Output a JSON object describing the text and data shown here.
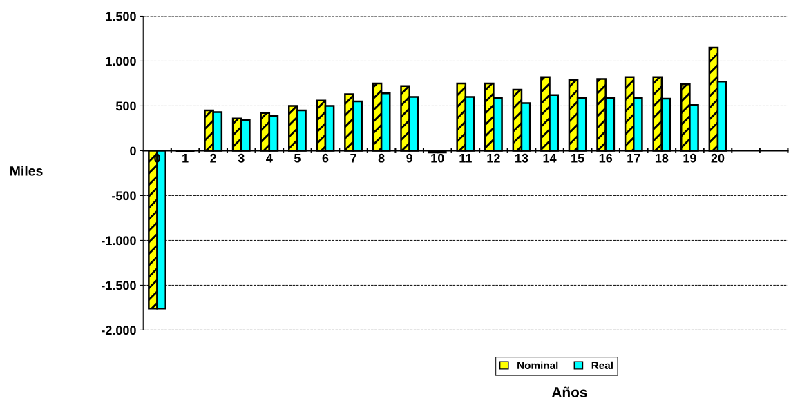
{
  "chart_data": {
    "type": "bar",
    "xlabel": "Años",
    "ylabel": "Miles",
    "categories": [
      "0",
      "1",
      "2",
      "3",
      "4",
      "5",
      "6",
      "7",
      "8",
      "9",
      "10",
      "11",
      "12",
      "13",
      "14",
      "15",
      "16",
      "17",
      "18",
      "19",
      "20",
      null,
      null
    ],
    "series": [
      {
        "name": "Nominal",
        "color": "#ffff00",
        "values": [
          -1760,
          -10,
          450,
          360,
          420,
          500,
          560,
          630,
          750,
          720,
          -20,
          750,
          750,
          680,
          820,
          790,
          800,
          820,
          820,
          740,
          1150,
          null,
          null
        ]
      },
      {
        "name": "Real",
        "color": "#00ffff",
        "values": [
          -1760,
          -10,
          430,
          340,
          390,
          450,
          500,
          550,
          640,
          600,
          -20,
          600,
          590,
          530,
          620,
          590,
          590,
          590,
          580,
          510,
          770,
          null,
          null
        ]
      }
    ],
    "ylim": [
      -2000,
      1500
    ],
    "yticks": [
      {
        "value": -2000,
        "label": "-2.000"
      },
      {
        "value": -1500,
        "label": "-1.500"
      },
      {
        "value": -1000,
        "label": "-1.000"
      },
      {
        "value": -500,
        "label": "-500"
      },
      0,
      500,
      {
        "value": 1000,
        "label": "1.000"
      },
      {
        "value": 1500,
        "label": "1.500"
      }
    ],
    "grid": "y",
    "legend": "bottom right"
  }
}
